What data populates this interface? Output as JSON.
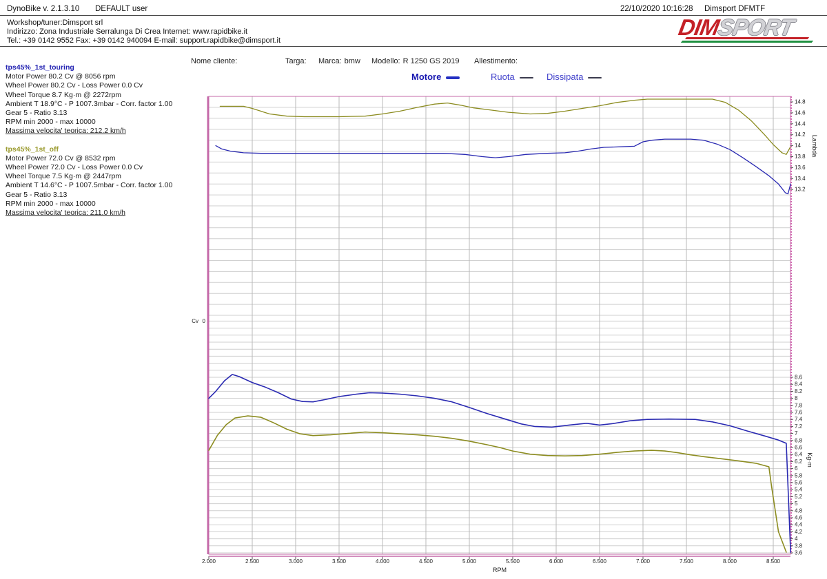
{
  "topbar": {
    "app_title": "DynoBike v. 2.1.3.10",
    "user": "DEFAULT user",
    "timestamp": "22/10/2020 10:16:28",
    "device": "Dimsport DFMTF"
  },
  "workshop": {
    "line1": "Workshop/tuner:Dimsport srl",
    "line2": "Indirizzo: Zona Industriale Serralunga Di Crea Internet: www.rapidbike.it",
    "line3": "Tel.: +39 0142 9552 Fax: +39 0142 940094 E-mail: support.rapidbike@dimsport.it"
  },
  "logo": {
    "part1": "DIM",
    "part2": "SPORT"
  },
  "sidebar": {
    "runs": [
      {
        "title": "tps45%_1st_touring",
        "color": "#2424b2",
        "lines": [
          "Motor Power 80.2 Cv  @ 8056 rpm",
          "Wheel Power 80.2 Cv  - Loss Power 0.0 Cv",
          "Wheel Torque 8.7 Kg·m  @ 2272rpm",
          "Ambient T 18.9°C - P 1007.3mbar - Corr. factor 1.00",
          "Gear 5 - Ratio 3.13",
          "RPM min 2000 - max 10000"
        ],
        "footer": "Massima velocita' teorica: 212.2 km/h"
      },
      {
        "title": "tps45%_1st_off",
        "color": "#9a9a2e",
        "lines": [
          "Motor Power 72.0 Cv  @ 8532 rpm",
          "Wheel Power 72.0 Cv  - Loss Power 0.0 Cv",
          "Wheel Torque 7.5 Kg·m  @ 2447rpm",
          "Ambient T 14.6°C - P 1007.5mbar - Corr. factor 1.00",
          "Gear 5 - Ratio 3.13",
          "RPM min 2000 - max 10000"
        ],
        "footer": "Massima velocita' teorica: 211.0 km/h"
      }
    ]
  },
  "header": {
    "fields": [
      {
        "label": "Nome cliente:",
        "value": ""
      },
      {
        "label": "Targa:",
        "value": ""
      },
      {
        "label": "Marca:",
        "value": "bmw"
      },
      {
        "label": "Modello:",
        "value": "R 1250 GS 2019"
      },
      {
        "label": "Allestimento:",
        "value": ""
      }
    ]
  },
  "legend": {
    "items": [
      {
        "label": "Motore",
        "text_color": "#1717b0",
        "swatch_color": "#2430c2",
        "swatch_height": 4
      },
      {
        "label": "Ruota",
        "text_color": "#4343cc",
        "swatch_color": "#3a3a4e",
        "swatch_height": 2
      },
      {
        "label": "Dissipata",
        "text_color": "#4343cc",
        "swatch_color": "#3a3a4e",
        "swatch_height": 2
      }
    ]
  },
  "chart_data": {
    "type": "line",
    "title": "",
    "grid": true,
    "x_axis": {
      "label": "RPM",
      "min": 2000,
      "max": 8700,
      "ticks": [
        {
          "v": 2000,
          "label": "2.000"
        },
        {
          "v": 2500,
          "label": "2.500"
        },
        {
          "v": 3000,
          "label": "3.000"
        },
        {
          "v": 3500,
          "label": "3.500"
        },
        {
          "v": 4000,
          "label": "4.000"
        },
        {
          "v": 4500,
          "label": "4.500"
        },
        {
          "v": 5000,
          "label": "5.000"
        },
        {
          "v": 5500,
          "label": "5.500"
        },
        {
          "v": 6000,
          "label": "6.000"
        },
        {
          "v": 6500,
          "label": "6.500"
        },
        {
          "v": 7000,
          "label": "7.000"
        },
        {
          "v": 7500,
          "label": "7.500"
        },
        {
          "v": 8000,
          "label": "8.000"
        },
        {
          "v": 8500,
          "label": "8.500"
        }
      ]
    },
    "axes": {
      "lambda": {
        "label": "Lambda",
        "side": "right-top",
        "min": 13.1,
        "max": 14.9,
        "ticks": [
          14.8,
          14.6,
          14.4,
          14.2,
          14,
          13.8,
          13.6,
          13.4,
          13.2
        ]
      },
      "torque": {
        "label": "Kg·m",
        "side": "right-bottom",
        "min": 3.5,
        "max": 8.7,
        "ticks": [
          8.6,
          8.4,
          8.2,
          8,
          7.8,
          7.6,
          7.4,
          7.2,
          7,
          6.8,
          6.6,
          6.4,
          6.2,
          6,
          5.8,
          5.6,
          5.4,
          5.2,
          5,
          4.8,
          4.6,
          4.4,
          4.2,
          4,
          3.8,
          3.6
        ]
      }
    },
    "left_axis": {
      "label": "Cv",
      "tick": "0"
    },
    "border_color": "#c468a8",
    "series": [
      {
        "name": "tps45%_1st_touring Lambda",
        "axis": "lambda",
        "color": "#2a2ab2",
        "width": 1.3,
        "points": [
          [
            2080,
            14.0
          ],
          [
            2150,
            13.94
          ],
          [
            2250,
            13.9
          ],
          [
            2400,
            13.87
          ],
          [
            2600,
            13.86
          ],
          [
            3000,
            13.86
          ],
          [
            3600,
            13.86
          ],
          [
            4200,
            13.86
          ],
          [
            4700,
            13.86
          ],
          [
            4950,
            13.84
          ],
          [
            5150,
            13.8
          ],
          [
            5300,
            13.78
          ],
          [
            5450,
            13.8
          ],
          [
            5650,
            13.84
          ],
          [
            5900,
            13.86
          ],
          [
            6100,
            13.87
          ],
          [
            6250,
            13.9
          ],
          [
            6400,
            13.94
          ],
          [
            6550,
            13.97
          ],
          [
            6750,
            13.98
          ],
          [
            6900,
            13.99
          ],
          [
            7000,
            14.07
          ],
          [
            7100,
            14.1
          ],
          [
            7250,
            14.12
          ],
          [
            7550,
            14.12
          ],
          [
            7700,
            14.1
          ],
          [
            7850,
            14.03
          ],
          [
            8000,
            13.93
          ],
          [
            8150,
            13.78
          ],
          [
            8300,
            13.62
          ],
          [
            8450,
            13.45
          ],
          [
            8560,
            13.3
          ],
          [
            8640,
            13.14
          ],
          [
            8670,
            13.12
          ],
          [
            8700,
            13.3
          ]
        ]
      },
      {
        "name": "tps45%_1st_off Lambda",
        "axis": "lambda",
        "color": "#8c8c20",
        "width": 1.3,
        "points": [
          [
            2130,
            14.72
          ],
          [
            2400,
            14.72
          ],
          [
            2500,
            14.68
          ],
          [
            2700,
            14.58
          ],
          [
            2900,
            14.54
          ],
          [
            3100,
            14.53
          ],
          [
            3500,
            14.53
          ],
          [
            3800,
            14.54
          ],
          [
            4000,
            14.58
          ],
          [
            4200,
            14.63
          ],
          [
            4400,
            14.7
          ],
          [
            4600,
            14.76
          ],
          [
            4750,
            14.78
          ],
          [
            4900,
            14.74
          ],
          [
            5050,
            14.69
          ],
          [
            5250,
            14.65
          ],
          [
            5450,
            14.61
          ],
          [
            5700,
            14.58
          ],
          [
            5900,
            14.59
          ],
          [
            6100,
            14.63
          ],
          [
            6300,
            14.68
          ],
          [
            6500,
            14.73
          ],
          [
            6700,
            14.79
          ],
          [
            6900,
            14.83
          ],
          [
            7050,
            14.85
          ],
          [
            7400,
            14.85
          ],
          [
            7800,
            14.85
          ],
          [
            7950,
            14.79
          ],
          [
            8100,
            14.65
          ],
          [
            8250,
            14.45
          ],
          [
            8400,
            14.2
          ],
          [
            8500,
            14.02
          ],
          [
            8600,
            13.87
          ],
          [
            8650,
            13.84
          ],
          [
            8695,
            13.97
          ]
        ]
      },
      {
        "name": "tps45%_1st_touring Torque",
        "axis": "torque",
        "color": "#2a2ab2",
        "width": 1.6,
        "points": [
          [
            2000,
            8.0
          ],
          [
            2080,
            8.2
          ],
          [
            2180,
            8.5
          ],
          [
            2270,
            8.68
          ],
          [
            2350,
            8.62
          ],
          [
            2500,
            8.45
          ],
          [
            2650,
            8.32
          ],
          [
            2800,
            8.16
          ],
          [
            2950,
            7.98
          ],
          [
            3080,
            7.91
          ],
          [
            3200,
            7.9
          ],
          [
            3350,
            7.97
          ],
          [
            3500,
            8.05
          ],
          [
            3700,
            8.12
          ],
          [
            3850,
            8.16
          ],
          [
            4000,
            8.15
          ],
          [
            4200,
            8.12
          ],
          [
            4400,
            8.07
          ],
          [
            4600,
            8.0
          ],
          [
            4800,
            7.9
          ],
          [
            5000,
            7.74
          ],
          [
            5200,
            7.57
          ],
          [
            5400,
            7.42
          ],
          [
            5600,
            7.27
          ],
          [
            5750,
            7.2
          ],
          [
            5950,
            7.18
          ],
          [
            6150,
            7.24
          ],
          [
            6350,
            7.29
          ],
          [
            6500,
            7.24
          ],
          [
            6650,
            7.28
          ],
          [
            6850,
            7.36
          ],
          [
            7050,
            7.4
          ],
          [
            7300,
            7.41
          ],
          [
            7600,
            7.4
          ],
          [
            7800,
            7.33
          ],
          [
            8000,
            7.22
          ],
          [
            8200,
            7.07
          ],
          [
            8400,
            6.93
          ],
          [
            8550,
            6.82
          ],
          [
            8650,
            6.72
          ],
          [
            8700,
            3.62
          ]
        ]
      },
      {
        "name": "tps45%_1st_off Torque",
        "axis": "torque",
        "color": "#8c8c20",
        "width": 1.6,
        "points": [
          [
            2000,
            6.52
          ],
          [
            2100,
            6.95
          ],
          [
            2200,
            7.25
          ],
          [
            2300,
            7.44
          ],
          [
            2450,
            7.5
          ],
          [
            2600,
            7.46
          ],
          [
            2750,
            7.3
          ],
          [
            2900,
            7.12
          ],
          [
            3050,
            6.99
          ],
          [
            3200,
            6.94
          ],
          [
            3400,
            6.96
          ],
          [
            3600,
            7.0
          ],
          [
            3800,
            7.04
          ],
          [
            4000,
            7.02
          ],
          [
            4200,
            6.99
          ],
          [
            4400,
            6.96
          ],
          [
            4600,
            6.92
          ],
          [
            4800,
            6.86
          ],
          [
            5000,
            6.78
          ],
          [
            5200,
            6.68
          ],
          [
            5350,
            6.6
          ],
          [
            5500,
            6.5
          ],
          [
            5700,
            6.41
          ],
          [
            5900,
            6.37
          ],
          [
            6100,
            6.36
          ],
          [
            6300,
            6.37
          ],
          [
            6500,
            6.41
          ],
          [
            6700,
            6.46
          ],
          [
            6900,
            6.5
          ],
          [
            7100,
            6.52
          ],
          [
            7250,
            6.5
          ],
          [
            7400,
            6.45
          ],
          [
            7550,
            6.39
          ],
          [
            7700,
            6.34
          ],
          [
            7900,
            6.28
          ],
          [
            8100,
            6.22
          ],
          [
            8300,
            6.15
          ],
          [
            8450,
            6.05
          ],
          [
            8480,
            5.5
          ],
          [
            8560,
            4.2
          ],
          [
            8650,
            3.62
          ]
        ]
      }
    ]
  }
}
